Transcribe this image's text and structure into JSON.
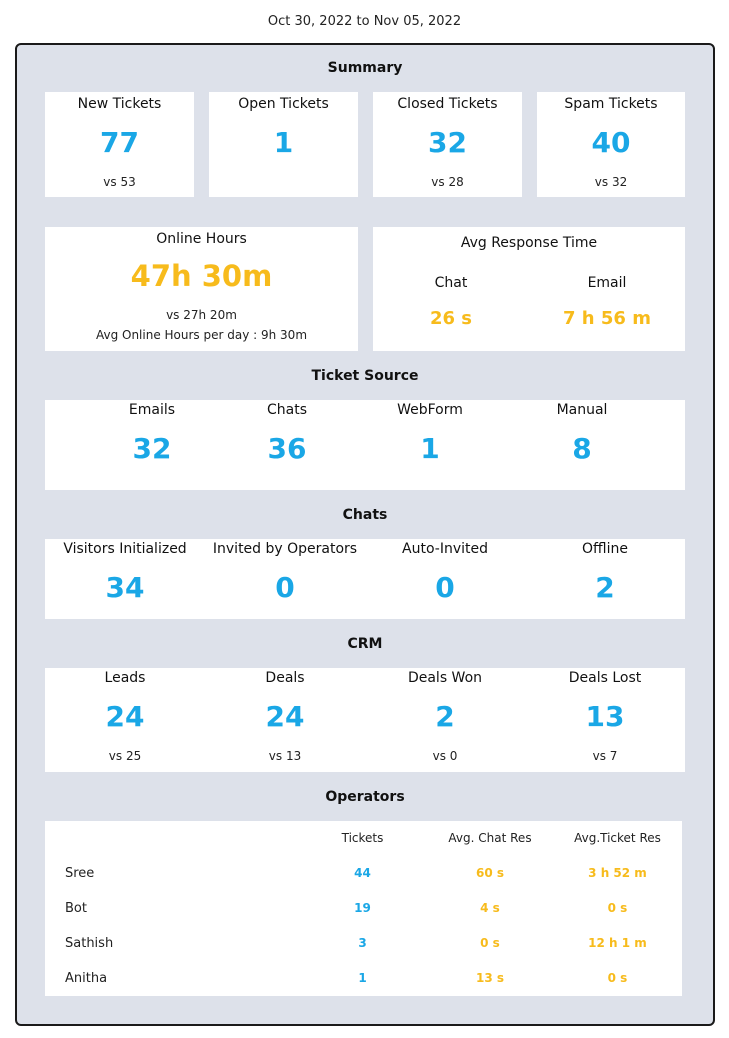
{
  "date_range": "Oct 30, 2022 to Nov 05, 2022",
  "colors": {
    "accent_blue": "#1aa7e6",
    "accent_orange": "#f7bb1c",
    "panel_bg": "#dde1ea"
  },
  "summary": {
    "title": "Summary",
    "cards": [
      {
        "label": "New Tickets",
        "value": "77",
        "vs": "vs 53"
      },
      {
        "label": "Open Tickets",
        "value": "1",
        "vs": ""
      },
      {
        "label": "Closed Tickets",
        "value": "32",
        "vs": "vs 28"
      },
      {
        "label": "Spam Tickets",
        "value": "40",
        "vs": "vs 32"
      }
    ]
  },
  "online_hours": {
    "label": "Online Hours",
    "value": "47h 30m",
    "vs": "vs 27h 20m",
    "avg": "Avg Online Hours per day : 9h 30m"
  },
  "avg_response": {
    "label": "Avg Response Time",
    "chat_label": "Chat",
    "chat_value": "26 s",
    "email_label": "Email",
    "email_value": "7 h 56 m"
  },
  "ticket_source": {
    "title": "Ticket Source",
    "items": [
      {
        "label": "Emails",
        "value": "32"
      },
      {
        "label": "Chats",
        "value": "36"
      },
      {
        "label": "WebForm",
        "value": "1"
      },
      {
        "label": "Manual",
        "value": "8"
      }
    ]
  },
  "chats": {
    "title": "Chats",
    "items": [
      {
        "label": "Visitors Initialized",
        "value": "34"
      },
      {
        "label": "Invited by Operators",
        "value": "0"
      },
      {
        "label": "Auto-Invited",
        "value": "0"
      },
      {
        "label": "Offline",
        "value": "2"
      }
    ]
  },
  "crm": {
    "title": "CRM",
    "items": [
      {
        "label": "Leads",
        "value": "24",
        "vs": "vs 25"
      },
      {
        "label": "Deals",
        "value": "24",
        "vs": "vs 13"
      },
      {
        "label": "Deals Won",
        "value": "2",
        "vs": "vs 0"
      },
      {
        "label": "Deals Lost",
        "value": "13",
        "vs": "vs 7"
      }
    ]
  },
  "operators": {
    "title": "Operators",
    "headers": [
      "Tickets",
      "Avg. Chat Res",
      "Avg.Ticket Res"
    ],
    "rows": [
      {
        "name": "Sree",
        "tickets": "44",
        "chat_res": "60 s",
        "ticket_res": "3 h 52 m"
      },
      {
        "name": "Bot",
        "tickets": "19",
        "chat_res": "4 s",
        "ticket_res": "0 s"
      },
      {
        "name": "Sathish",
        "tickets": "3",
        "chat_res": "0 s",
        "ticket_res": "12 h 1 m"
      },
      {
        "name": "Anitha",
        "tickets": "1",
        "chat_res": "13 s",
        "ticket_res": "0 s"
      }
    ]
  }
}
